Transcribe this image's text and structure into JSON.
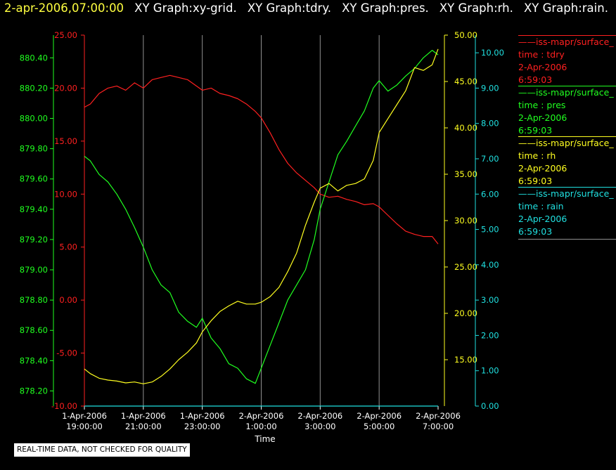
{
  "header": {
    "timestamp": "2-apr-2006,07:00:00",
    "items": [
      "XY Graph:xy-grid.",
      "XY Graph:tdry.",
      "XY Graph:pres.",
      "XY Graph:rh.",
      "XY Graph:rain."
    ]
  },
  "footer_note": "REAL-TIME DATA, NOT CHECKED FOR QUALITY",
  "colors": {
    "tdry": "#ff2020",
    "pres": "#20ff20",
    "rh": "#ffff20",
    "rain": "#20e0e0",
    "grid": "#909090"
  },
  "legend": [
    {
      "source": "iss-mapr/surface_",
      "line2": "time : tdry",
      "date": "2-Apr-2006",
      "time": "6:59:03",
      "color": "#ff2020"
    },
    {
      "source": "iss-mapr/surface_",
      "line2": "time : pres",
      "date": "2-Apr-2006",
      "time": "6:59:03",
      "color": "#20ff20"
    },
    {
      "source": "iss-mapr/surface_",
      "line2": "time : rh",
      "date": "2-Apr-2006",
      "time": "6:59:03",
      "color": "#ffff20"
    },
    {
      "source": "iss-mapr/surface_",
      "line2": "time : rain",
      "date": "2-Apr-2006",
      "time": "6:59:03",
      "color": "#20e0e0"
    }
  ],
  "chart_data": {
    "type": "line",
    "xlabel": "Time",
    "x_hours_range": [
      19,
      31
    ],
    "x_ticks": [
      {
        "hour": 19,
        "date": "1-Apr-2006",
        "time": "19:00:00"
      },
      {
        "hour": 21,
        "date": "1-Apr-2006",
        "time": "21:00:00"
      },
      {
        "hour": 23,
        "date": "1-Apr-2006",
        "time": "23:00:00"
      },
      {
        "hour": 25,
        "date": "2-Apr-2006",
        "time": "1:00:00"
      },
      {
        "hour": 27,
        "date": "2-Apr-2006",
        "time": "3:00:00"
      },
      {
        "hour": 29,
        "date": "2-Apr-2006",
        "time": "5:00:00"
      },
      {
        "hour": 31,
        "date": "2-Apr-2006",
        "time": "7:00:00"
      }
    ],
    "axes": {
      "tdry": {
        "range": [
          -10,
          25
        ],
        "ticks": [
          "25.00",
          "20.00",
          "15.00",
          "10.00",
          "5.00",
          "0.00",
          "-5.00",
          "-10.00"
        ]
      },
      "pres": {
        "range": [
          878.1,
          880.55
        ],
        "ticks": [
          "880.40",
          "880.20",
          "880.00",
          "879.80",
          "879.60",
          "879.40",
          "879.20",
          "879.00",
          "878.80",
          "878.60",
          "878.40",
          "878.20"
        ]
      },
      "rh": {
        "range": [
          10,
          50
        ],
        "ticks": [
          "50.00",
          "45.00",
          "40.00",
          "35.00",
          "30.00",
          "25.00",
          "20.00",
          "15.00"
        ]
      },
      "rain": {
        "range": [
          0,
          10.5
        ],
        "ticks": [
          "10.00",
          "9.00",
          "8.00",
          "7.00",
          "6.00",
          "5.00",
          "4.00",
          "3.00",
          "2.00",
          "1.00",
          "0.00"
        ]
      }
    },
    "grid": true,
    "series": [
      {
        "name": "tdry",
        "color": "#ff2020",
        "x": [
          19,
          19.2,
          19.5,
          19.8,
          20.1,
          20.4,
          20.7,
          21,
          21.3,
          21.6,
          21.9,
          22.2,
          22.5,
          22.8,
          23,
          23.3,
          23.6,
          23.9,
          24.2,
          24.5,
          24.8,
          25,
          25.3,
          25.6,
          25.9,
          26.2,
          26.5,
          26.8,
          27,
          27.3,
          27.6,
          27.9,
          28.2,
          28.5,
          28.8,
          29,
          29.3,
          29.6,
          29.9,
          30.2,
          30.5,
          30.8,
          31
        ],
        "values": [
          18.2,
          18.5,
          19.5,
          20.0,
          20.2,
          19.8,
          20.5,
          20.0,
          20.8,
          21.0,
          21.2,
          21.0,
          20.8,
          20.2,
          19.8,
          20.0,
          19.5,
          19.3,
          19.0,
          18.5,
          17.8,
          17.2,
          15.8,
          14.2,
          12.9,
          12.0,
          11.3,
          10.6,
          10.0,
          9.7,
          9.8,
          9.5,
          9.3,
          9.0,
          9.1,
          8.8,
          8.0,
          7.2,
          6.5,
          6.2,
          6.0,
          6.0,
          5.3
        ]
      },
      {
        "name": "pres",
        "color": "#20ff20",
        "x": [
          19,
          19.2,
          19.5,
          19.8,
          20.1,
          20.4,
          20.7,
          21,
          21.3,
          21.6,
          21.9,
          22.2,
          22.5,
          22.8,
          23,
          23.3,
          23.6,
          23.9,
          24.2,
          24.5,
          24.8,
          25,
          25.3,
          25.6,
          25.9,
          26.2,
          26.5,
          26.8,
          27,
          27.3,
          27.6,
          27.9,
          28.2,
          28.5,
          28.8,
          29,
          29.3,
          29.6,
          29.9,
          30.2,
          30.5,
          30.8,
          31
        ],
        "values": [
          879.75,
          879.72,
          879.63,
          879.58,
          879.5,
          879.4,
          879.28,
          879.15,
          879.0,
          878.9,
          878.85,
          878.72,
          878.66,
          878.62,
          878.68,
          878.55,
          878.48,
          878.38,
          878.35,
          878.28,
          878.25,
          878.35,
          878.5,
          878.65,
          878.8,
          878.9,
          879.0,
          879.2,
          879.4,
          879.58,
          879.76,
          879.85,
          879.95,
          880.05,
          880.2,
          880.25,
          880.18,
          880.22,
          880.28,
          880.33,
          880.4,
          880.45,
          880.42
        ]
      },
      {
        "name": "rh",
        "color": "#ffff20",
        "x": [
          19,
          19.2,
          19.5,
          19.8,
          20.1,
          20.4,
          20.7,
          21,
          21.3,
          21.6,
          21.9,
          22.2,
          22.5,
          22.8,
          23,
          23.3,
          23.6,
          23.9,
          24.2,
          24.5,
          24.8,
          25,
          25.3,
          25.6,
          25.9,
          26.2,
          26.5,
          26.8,
          27,
          27.3,
          27.6,
          27.9,
          28.2,
          28.5,
          28.8,
          29,
          29.3,
          29.6,
          29.9,
          30.2,
          30.5,
          30.8,
          31
        ],
        "values": [
          14.0,
          13.5,
          13.0,
          12.8,
          12.7,
          12.5,
          12.6,
          12.4,
          12.6,
          13.2,
          14.0,
          15.0,
          15.8,
          16.8,
          18.0,
          19.2,
          20.2,
          20.8,
          21.3,
          21.0,
          21.0,
          21.2,
          21.8,
          22.8,
          24.5,
          26.5,
          29.5,
          32.0,
          33.5,
          34.0,
          33.2,
          33.8,
          34.0,
          34.5,
          36.5,
          39.5,
          41.0,
          42.5,
          44.0,
          46.5,
          46.2,
          46.8,
          48.5
        ]
      },
      {
        "name": "rain",
        "color": "#20e0e0",
        "x": [
          19,
          31
        ],
        "values": [
          0.0,
          0.0
        ]
      }
    ]
  }
}
